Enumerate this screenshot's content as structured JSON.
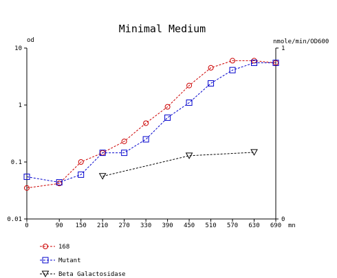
{
  "chart_data": {
    "type": "line",
    "title": "Minimal Medium",
    "left_axis_label": "od",
    "right_axis_label": "nmole/min/OD600",
    "x_unit_label": "mn",
    "x_ticks": [
      0,
      90,
      150,
      210,
      270,
      330,
      390,
      450,
      510,
      570,
      630,
      690
    ],
    "x_range": [
      0,
      690
    ],
    "left_scale": "log",
    "left_range": [
      0.01,
      10
    ],
    "left_ticks": [
      "10",
      "1",
      "0.1",
      "0.01"
    ],
    "right_range": [
      0,
      1
    ],
    "right_ticks": [
      "1",
      "0"
    ],
    "grid": false,
    "legend_placement": "bottom-left",
    "series": [
      {
        "name": "168",
        "axis": "left",
        "color": "#cc0000",
        "marker": "circle",
        "x": [
          0,
          90,
          150,
          210,
          270,
          330,
          390,
          450,
          510,
          570,
          630,
          690
        ],
        "y": [
          0.035,
          0.042,
          0.1,
          0.145,
          0.23,
          0.48,
          0.93,
          2.2,
          4.5,
          6.0,
          6.0,
          5.5
        ]
      },
      {
        "name": "Mutant",
        "axis": "left",
        "color": "#0000cc",
        "marker": "square",
        "x": [
          0,
          90,
          150,
          210,
          270,
          330,
          390,
          450,
          510,
          570,
          630,
          690
        ],
        "y": [
          0.055,
          0.044,
          0.06,
          0.145,
          0.145,
          0.25,
          0.6,
          1.1,
          2.4,
          4.1,
          5.5,
          5.5
        ]
      },
      {
        "name": "Beta Galactosidase",
        "axis": "right",
        "color": "#000000",
        "marker": "triangle-down",
        "x": [
          210,
          450,
          630
        ],
        "y": [
          0.25,
          0.37,
          0.39
        ]
      }
    ]
  }
}
